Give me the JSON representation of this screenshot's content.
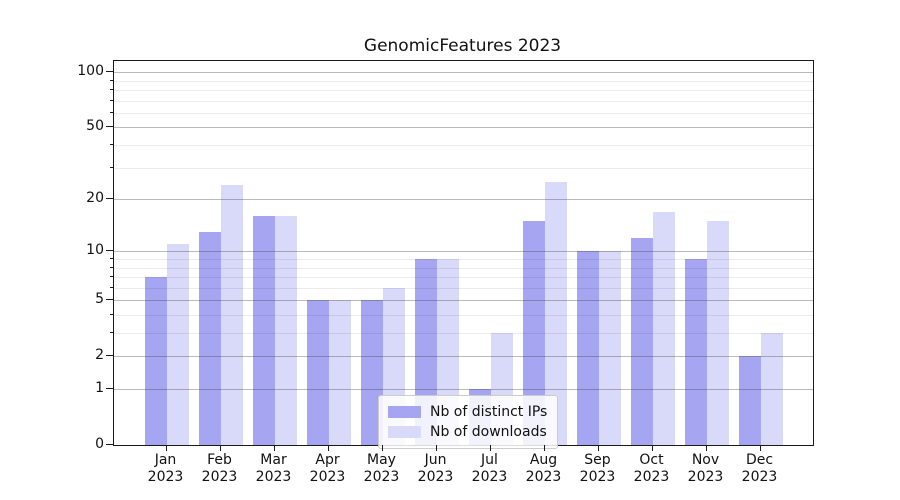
{
  "title": "GenomicFeatures 2023",
  "chart_data": {
    "type": "bar",
    "title": "GenomicFeatures 2023",
    "categories": [
      "Jan 2023",
      "Feb 2023",
      "Mar 2023",
      "Apr 2023",
      "May 2023",
      "Jun 2023",
      "Jul 2023",
      "Aug 2023",
      "Sep 2023",
      "Oct 2023",
      "Nov 2023",
      "Dec 2023"
    ],
    "x_tick_months": [
      "Jan",
      "Feb",
      "Mar",
      "Apr",
      "May",
      "Jun",
      "Jul",
      "Aug",
      "Sep",
      "Oct",
      "Nov",
      "Dec"
    ],
    "x_tick_year": "2023",
    "series": [
      {
        "name": "Nb of distinct IPs",
        "color": "#a5a5f2",
        "values": [
          7,
          13,
          16,
          5,
          5,
          9,
          1,
          15,
          10,
          12,
          9,
          2
        ]
      },
      {
        "name": "Nb of downloads",
        "color": "#d9d9f9",
        "values": [
          11,
          24,
          16,
          5,
          6,
          9,
          3,
          25,
          10,
          17,
          15,
          3
        ]
      }
    ],
    "xlabel": "",
    "ylabel": "",
    "y_axis": {
      "scale": "log10(1+v)",
      "major_ticks": [
        0,
        1,
        2,
        5,
        10,
        20,
        50,
        100
      ],
      "minor_ticks": [
        3,
        4,
        6,
        7,
        8,
        9,
        30,
        40,
        60,
        70,
        80,
        90
      ],
      "top_value": 115
    },
    "grid": true,
    "legend_position": "bottom-center"
  },
  "colors": {
    "ips_bar": "#a5a5f2",
    "downloads_bar": "#d9d9f9",
    "axis": "#1a1a1a",
    "major_grid": "rgba(60,60,60,0.35)",
    "minor_grid": "rgba(0,0,0,0.08)",
    "legend_border": "#cccccc"
  }
}
